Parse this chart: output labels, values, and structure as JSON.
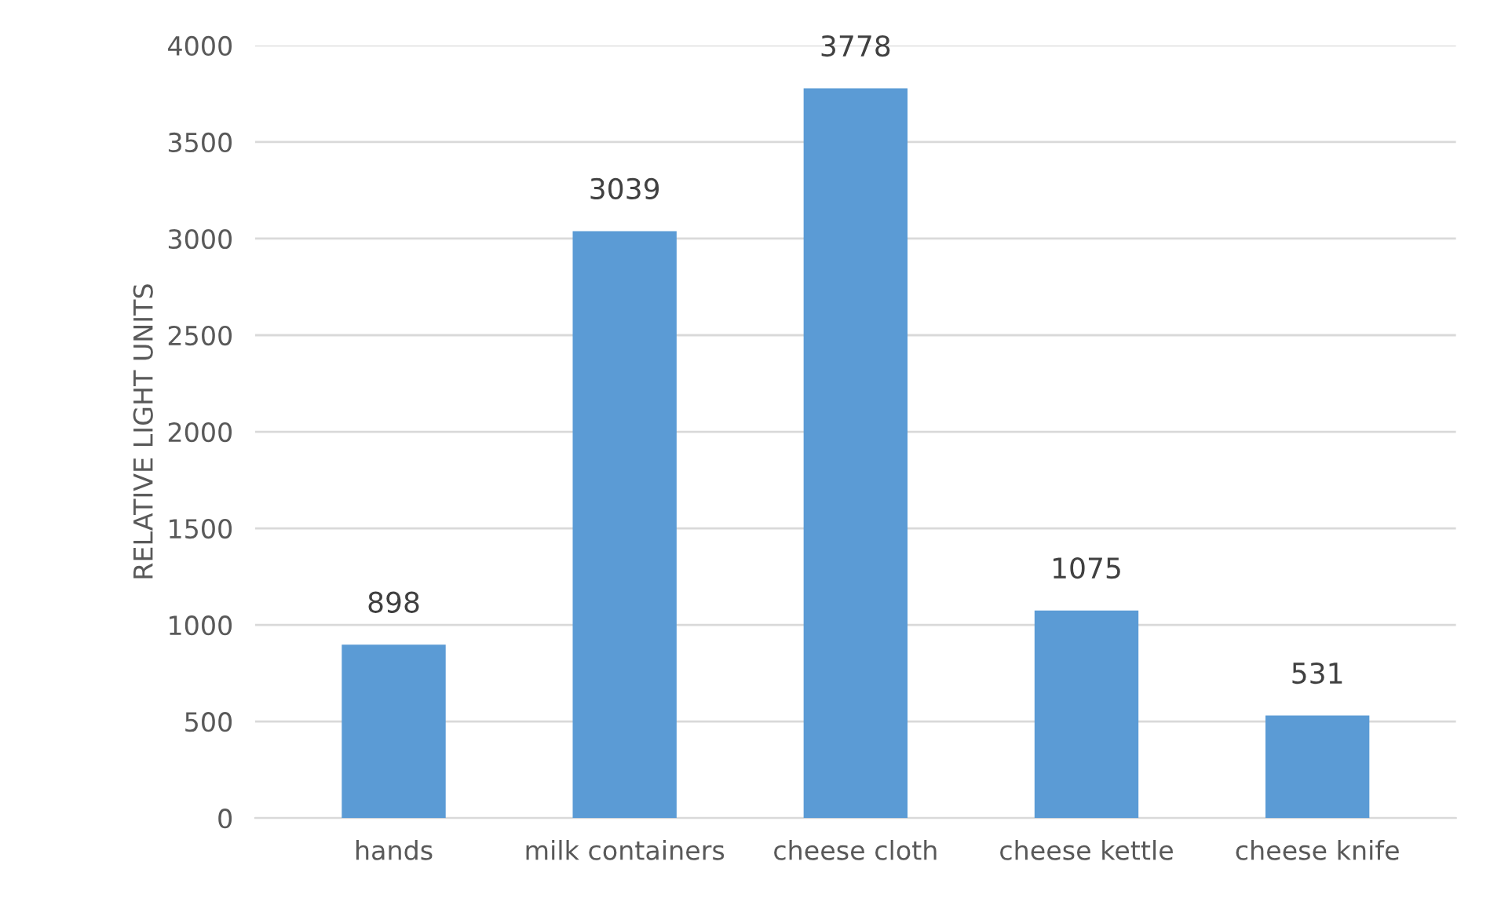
{
  "chart_data": {
    "type": "bar",
    "ylabel": "RELATIVE LIGHT UNITS",
    "categories": [
      "hands",
      "milk containers",
      "cheese cloth",
      "cheese kettle",
      "cheese knife"
    ],
    "values": [
      898,
      3039,
      3778,
      1075,
      531
    ],
    "color": "#5b9bd5",
    "ylim": [
      0,
      4000
    ],
    "yticks": [
      0,
      500,
      1000,
      1500,
      2000,
      2500,
      3000,
      3500,
      4000
    ],
    "grid": "y",
    "data_labels": true
  }
}
